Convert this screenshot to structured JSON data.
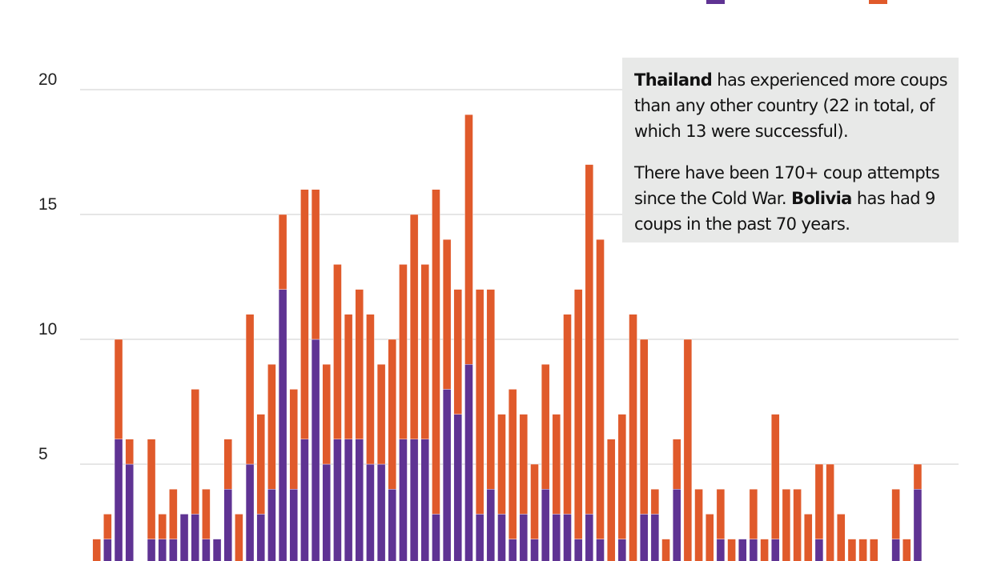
{
  "chart_data": {
    "type": "bar",
    "stacked": true,
    "ylim": [
      0,
      20
    ],
    "yticks": [
      5,
      10,
      15,
      20
    ],
    "ytick_labels": [
      "5",
      "10",
      "15",
      "20"
    ],
    "grid": true,
    "colors": {
      "bottom": "#5f3393",
      "top": "#e05a2b",
      "grid": "#cccccc"
    },
    "series": [
      {
        "color": "#5f3393",
        "values": [
          0,
          2,
          6,
          5,
          0,
          2,
          2,
          2,
          3,
          3,
          2,
          2,
          4,
          0,
          5,
          3,
          4,
          12,
          4,
          6,
          10,
          5,
          6,
          6,
          6,
          5,
          5,
          4,
          6,
          6,
          6,
          3,
          8,
          7,
          9,
          3,
          4,
          3,
          2,
          3,
          2,
          4,
          3,
          3,
          2,
          3,
          2,
          0,
          2,
          0,
          3,
          3,
          0,
          4,
          0,
          0,
          0,
          2,
          0,
          2,
          2,
          0,
          2,
          0,
          0,
          0,
          2,
          0,
          0,
          0,
          0,
          0,
          0,
          2,
          0,
          4
        ]
      },
      {
        "color": "#e05a2b",
        "values": [
          2,
          1,
          4,
          1,
          1,
          4,
          1,
          2,
          0,
          5,
          2,
          0,
          2,
          3,
          6,
          4,
          5,
          3,
          4,
          10,
          6,
          4,
          7,
          5,
          6,
          6,
          4,
          6,
          7,
          9,
          7,
          13,
          6,
          5,
          10,
          9,
          8,
          4,
          6,
          4,
          3,
          5,
          4,
          8,
          10,
          14,
          12,
          6,
          5,
          11,
          7,
          1,
          2,
          2,
          10,
          4,
          3,
          2,
          2,
          0,
          2,
          2,
          5,
          4,
          4,
          3,
          3,
          5,
          3,
          2,
          2,
          2,
          1,
          2,
          2,
          1
        ]
      }
    ]
  },
  "legend": {
    "swatches": [
      "#5f3393",
      "#e05a2b"
    ]
  },
  "note": {
    "p1_bold": "Thailand",
    "p1_rest": " has experienced more coups than any other country (22 in total, of which 13 were successful).",
    "p2_start": "There have been 170+ coup attempts since the Cold War. ",
    "p2_bold": "Bolivia",
    "p2_rest": " has had 9 coups in the past 70 years."
  }
}
